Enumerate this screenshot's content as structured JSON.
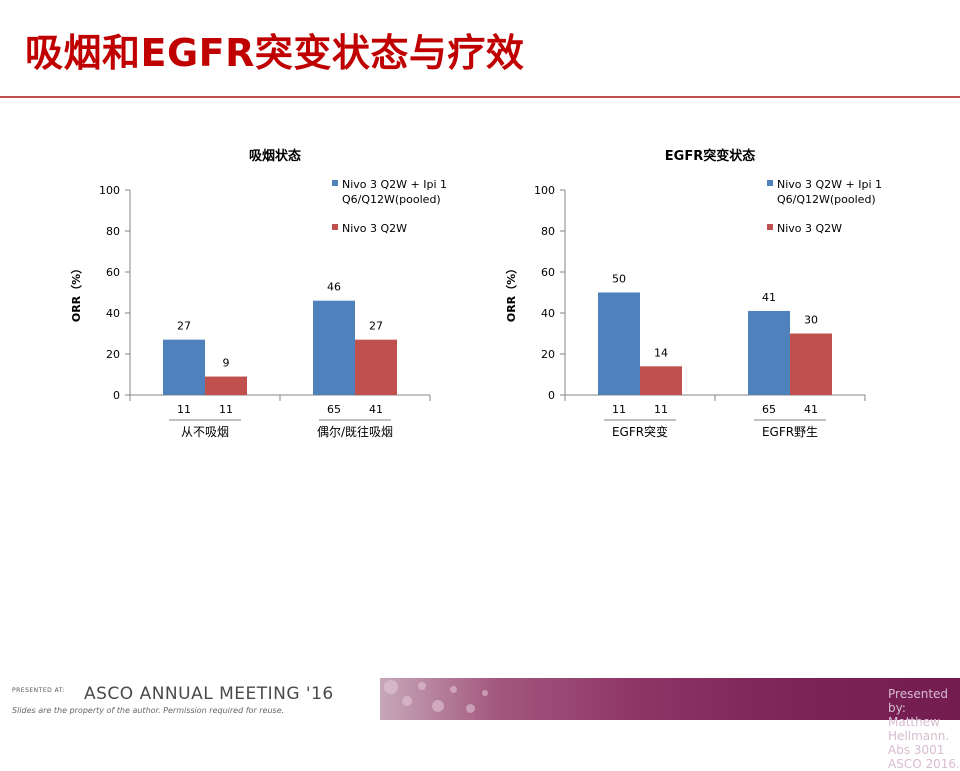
{
  "slide_title": "吸烟和EGFR突变状态与疗效",
  "colors": {
    "series1": "#4f81bd",
    "series2": "#c0504d",
    "title": "#c00000",
    "rule": "#c0504d"
  },
  "chart_data": [
    {
      "type": "bar",
      "title": "吸烟状态",
      "ylabel": "ORR（%）",
      "ylim": [
        0,
        100
      ],
      "yticks": [
        0,
        20,
        40,
        60,
        80,
        100
      ],
      "grid": false,
      "legend_position": "top-right",
      "categories": [
        "从不吸烟",
        "偶尔/既往吸烟"
      ],
      "series": [
        {
          "name": "Nivo 3 Q2W + Ipi 1 Q6/Q12W(pooled)",
          "values": [
            27,
            46
          ],
          "n": [
            "11",
            "65"
          ]
        },
        {
          "name": "Nivo 3 Q2W",
          "values": [
            9,
            27
          ],
          "n": [
            "11",
            "41"
          ]
        }
      ]
    },
    {
      "type": "bar",
      "title": "EGFR突变状态",
      "ylabel": "ORR（%）",
      "ylim": [
        0,
        100
      ],
      "yticks": [
        0,
        20,
        40,
        60,
        80,
        100
      ],
      "grid": false,
      "legend_position": "top-right",
      "categories": [
        "EGFR突变",
        "EGFR野生"
      ],
      "series": [
        {
          "name": "Nivo 3 Q2W + Ipi 1 Q6/Q12W(pooled)",
          "values": [
            50,
            41
          ],
          "n": [
            "11",
            "65"
          ]
        },
        {
          "name": "Nivo 3 Q2W",
          "values": [
            14,
            30
          ],
          "n": [
            "11",
            "41"
          ]
        }
      ]
    }
  ],
  "footer": {
    "presented_at": "PRESENTED AT:",
    "meeting": "ASCO ANNUAL MEETING '16",
    "disclaimer": "Slides are the property of the author. Permission required for reuse.",
    "credit": "Presented by: Matthew Hellmann. Abs 3001 ASCO 2016."
  }
}
